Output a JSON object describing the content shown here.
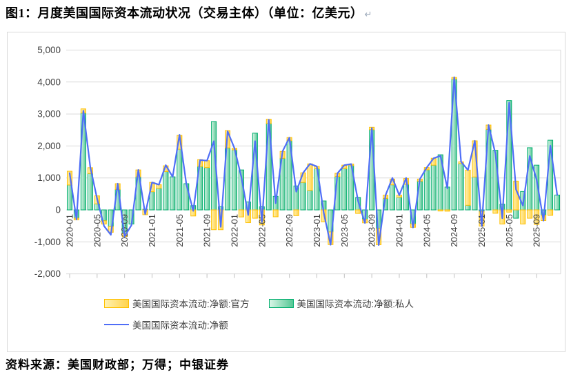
{
  "title": {
    "text": "图1：月度美国国际资本流动状况（交易主体）（单位：亿美元）",
    "mark": "↵"
  },
  "source": "资料来源：美国财政部；万得；中银证券",
  "legend": {
    "official": "美国国际资本流动:净额:官方",
    "private": "美国国际资本流动:净额:私人",
    "net": "美国国际资本流动:净额"
  },
  "colors": {
    "official_fill_light": "#FFF1B0",
    "official_fill": "#FFD34D",
    "official_border": "#FFC000",
    "private_fill_light": "#D9F5E6",
    "private_fill": "#55C795",
    "private_border": "#00AE6E",
    "net_line": "#4F6EF7",
    "grid": "#d9d9d9",
    "axis_text": "#404040"
  },
  "chart_data": {
    "type": "bar-line-combo",
    "title": "",
    "xlabel": "",
    "ylabel": "",
    "ylim": [
      -2000,
      5000
    ],
    "ytick_step": 1000,
    "ytick_labels": [
      "5,000",
      "4,000",
      "3,000",
      "2,000",
      "1,000",
      "0",
      "-1,000",
      "-2,000"
    ],
    "ytick_values": [
      5000,
      4000,
      3000,
      2000,
      1000,
      0,
      -1000,
      -2000
    ],
    "x_tick_every": 4,
    "grid": true,
    "legend_position": "bottom",
    "months": [
      "2020-01",
      "2020-02",
      "2020-03",
      "2020-04",
      "2020-05",
      "2020-06",
      "2020-07",
      "2020-08",
      "2020-09",
      "2020-10",
      "2020-11",
      "2020-12",
      "2021-01",
      "2021-02",
      "2021-03",
      "2021-04",
      "2021-05",
      "2021-06",
      "2021-07",
      "2021-08",
      "2021-09",
      "2021-10",
      "2021-11",
      "2021-12",
      "2022-01",
      "2022-02",
      "2022-03",
      "2022-04",
      "2022-05",
      "2022-06",
      "2022-07",
      "2022-08",
      "2022-09",
      "2022-10",
      "2022-11",
      "2022-12",
      "2023-01",
      "2023-02",
      "2023-03",
      "2023-04",
      "2023-05",
      "2023-06",
      "2023-07",
      "2023-08",
      "2023-09",
      "2023-10",
      "2023-11",
      "2023-12",
      "2024-01",
      "2024-02",
      "2024-03",
      "2024-04",
      "2024-05",
      "2024-06",
      "2024-07",
      "2024-08",
      "2024-09",
      "2024-10",
      "2024-11",
      "2024-12",
      "2025-01",
      "2025-02",
      "2025-03",
      "2025-04",
      "2025-05",
      "2025-06",
      "2025-07",
      "2025-08",
      "2025-09",
      "2025-10",
      "2025-11",
      "2025-12"
    ],
    "series": [
      {
        "name": "美国国际资本流动:净额:官方",
        "type": "bar",
        "values": [
          430,
          -50,
          130,
          180,
          250,
          -100,
          -180,
          180,
          -100,
          0,
          215,
          -150,
          290,
          110,
          180,
          0,
          430,
          0,
          -190,
          215,
          215,
          -620,
          -620,
          540,
          50,
          -220,
          -400,
          -260,
          -470,
          135,
          -215,
          215,
          100,
          -180,
          300,
          825,
          70,
          -370,
          -395,
          100,
          110,
          50,
          -110,
          -110,
          75,
          -505,
          100,
          180,
          60,
          180,
          -105,
          65,
          70,
          215,
          -35,
          -40,
          50,
          55,
          1100,
          1130,
          -455,
          135,
          -105,
          -440,
          -70,
          900,
          -440,
          -260,
          -455,
          -170,
          -170,
          0
        ]
      },
      {
        "name": "美国国际资本流动:净额:私人",
        "type": "bar",
        "values": [
          780,
          -260,
          3030,
          1140,
          190,
          -340,
          -520,
          640,
          -730,
          -440,
          1035,
          20,
          570,
          680,
          1200,
          1035,
          1900,
          820,
          135,
          1360,
          1325,
          2765,
          100,
          1940,
          1880,
          1250,
          250,
          2400,
          100,
          2700,
          425,
          1615,
          2165,
          750,
          860,
          615,
          1290,
          280,
          -690,
          1045,
          1290,
          1385,
          390,
          -295,
          2510,
          -585,
          360,
          785,
          400,
          800,
          -440,
          900,
          1255,
          1400,
          1725,
          715,
          4095,
          1450,
          145,
          1030,
          -50,
          2520,
          1865,
          180,
          3420,
          -260,
          575,
          1945,
          1400,
          -165,
          2180,
          465
        ]
      },
      {
        "name": "美国国际资本流动:净额",
        "type": "line",
        "values": [
          1150,
          -300,
          3100,
          1350,
          350,
          -500,
          -780,
          820,
          -830,
          -480,
          1250,
          -130,
          860,
          790,
          1400,
          1035,
          2350,
          800,
          -30,
          1560,
          1540,
          2150,
          -530,
          2460,
          1930,
          1030,
          -160,
          2150,
          -380,
          2820,
          210,
          1830,
          2260,
          570,
          1160,
          1440,
          1360,
          -90,
          -1090,
          1145,
          1400,
          1435,
          280,
          -410,
          2560,
          -1100,
          460,
          1000,
          460,
          1000,
          -550,
          965,
          1325,
          1615,
          1690,
          675,
          4150,
          1505,
          1245,
          2160,
          -505,
          2655,
          1760,
          -260,
          3350,
          640,
          135,
          1685,
          945,
          -335,
          2010,
          465
        ]
      }
    ]
  }
}
